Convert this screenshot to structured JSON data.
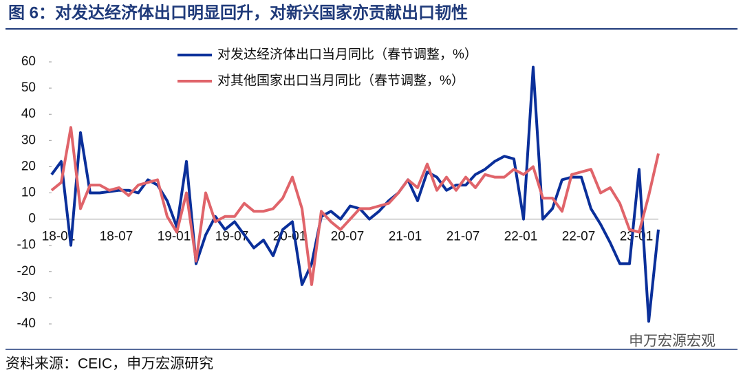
{
  "chart_data": {
    "type": "line",
    "title": "图 6：对发达经济体出口明显回升，对新兴国家亦贡献出口韧性",
    "source": "资料来源：CEIC，申万宏源研究",
    "watermark": "申万宏源宏观",
    "categories": [
      "18-01",
      null,
      null,
      null,
      null,
      null,
      "18-07",
      null,
      null,
      null,
      null,
      null,
      "19-01",
      null,
      null,
      null,
      null,
      null,
      "19-07",
      null,
      null,
      null,
      null,
      null,
      "20-01",
      null,
      null,
      null,
      null,
      null,
      "20-07",
      null,
      null,
      null,
      null,
      null,
      "21-01",
      null,
      null,
      null,
      null,
      null,
      "21-07",
      null,
      null,
      null,
      null,
      null,
      "22-01",
      null,
      null,
      null,
      null,
      null,
      "22-07",
      null,
      null,
      null,
      null,
      null,
      "23-01",
      null,
      null,
      null
    ],
    "series": [
      {
        "name": "对发达经济体出口当月同比（春节调整，%）",
        "color": "#0a2f9a",
        "values": [
          17,
          22,
          -10,
          33,
          10,
          10,
          10.5,
          11,
          11,
          10,
          15,
          13,
          7,
          -3,
          22,
          -17,
          -6,
          1,
          -4,
          -1,
          -6,
          -11,
          -8,
          -14,
          -4,
          -1,
          -25,
          -17,
          1,
          3,
          0,
          5,
          4,
          0,
          3,
          7,
          10,
          15,
          7,
          18,
          16,
          11,
          13,
          13,
          17,
          19,
          22,
          24,
          23,
          0,
          58,
          0,
          4,
          15,
          16,
          16,
          4,
          -2,
          -9,
          -17,
          -17,
          19,
          -39,
          -4
        ]
      },
      {
        "name": "对其他国家出口当月同比（春节调整，%）",
        "color": "#e0646a",
        "values": [
          11,
          14,
          35,
          4,
          13,
          13,
          11,
          12,
          9,
          13,
          14,
          15,
          1,
          -5,
          10,
          -16,
          10,
          -1,
          1,
          1,
          6,
          3,
          3,
          4,
          8,
          16,
          4,
          -25,
          3,
          -1,
          -4,
          0,
          4,
          4,
          5,
          6,
          10,
          15,
          12,
          21,
          11,
          16,
          11,
          16,
          12,
          17,
          16,
          16,
          19,
          17,
          20,
          8,
          8,
          3,
          17,
          18,
          19,
          10,
          12,
          6,
          -4,
          -5,
          9,
          25
        ]
      }
    ],
    "ylim": [
      -40,
      60
    ],
    "yticks": [
      -40,
      -30,
      -20,
      -10,
      0,
      10,
      20,
      30,
      40,
      50,
      60
    ]
  }
}
